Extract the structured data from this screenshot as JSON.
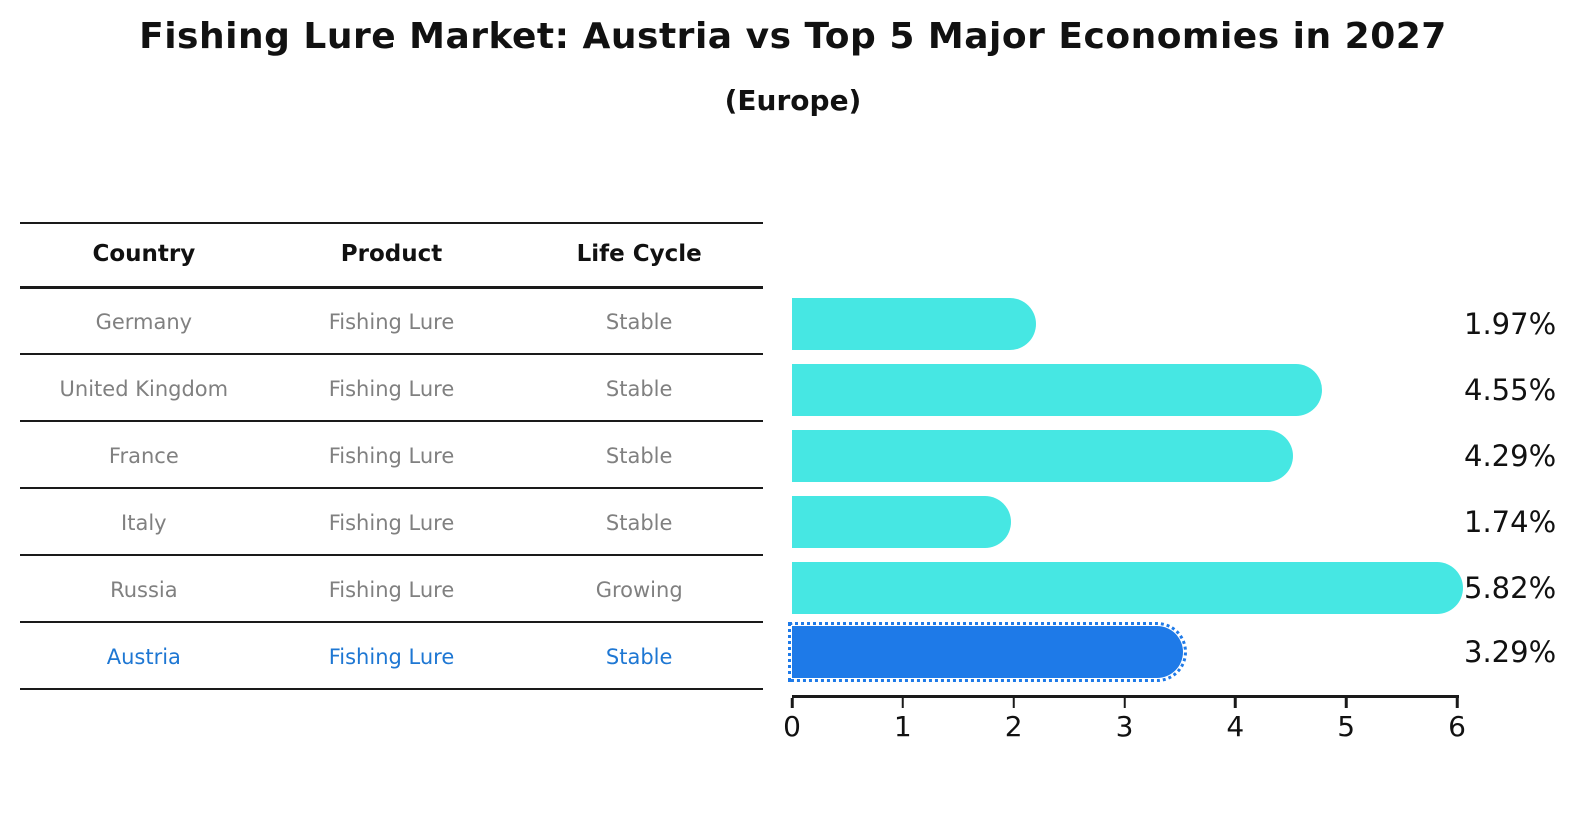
{
  "title": "Fishing Lure Market: Austria vs Top 5 Major Economies in 2027",
  "subtitle": "(Europe)",
  "table": {
    "headers": {
      "country": "Country",
      "product": "Product",
      "life_cycle": "Life Cycle"
    },
    "rows": [
      {
        "country": "Germany",
        "product": "Fishing Lure",
        "life_cycle": "Stable"
      },
      {
        "country": "United Kingdom",
        "product": "Fishing Lure",
        "life_cycle": "Stable"
      },
      {
        "country": "France",
        "product": "Fishing Lure",
        "life_cycle": "Stable"
      },
      {
        "country": "Italy",
        "product": "Fishing Lure",
        "life_cycle": "Stable"
      },
      {
        "country": "Russia",
        "product": "Fishing Lure",
        "life_cycle": "Growing"
      },
      {
        "country": "Austria",
        "product": "Fishing Lure",
        "life_cycle": "Stable"
      }
    ]
  },
  "chart_data": {
    "type": "bar",
    "orientation": "horizontal",
    "title": "Fishing Lure Market: Austria vs Top 5 Major Economies in 2027",
    "subtitle": "(Europe)",
    "categories": [
      "Germany",
      "United Kingdom",
      "France",
      "Italy",
      "Russia",
      "Austria"
    ],
    "values": [
      1.97,
      4.55,
      4.29,
      1.74,
      5.82,
      3.29
    ],
    "value_labels": [
      "1.97%",
      "4.55%",
      "4.29%",
      "1.74%",
      "5.82%",
      "3.29%"
    ],
    "xlabel": "",
    "ylabel": "",
    "xlim": [
      0,
      6
    ],
    "x_ticks": [
      "0",
      "1",
      "2",
      "3",
      "4",
      "5",
      "6"
    ],
    "grid": false,
    "legend": "none",
    "bar_color": "#46e7e3",
    "highlight_color": "#1e7ae8",
    "highlight_index": 5,
    "highlight_style": "dotted-outline"
  },
  "colors": {
    "background": "#ffffff",
    "title_text": "#111111",
    "table_line": "#1a1a1a",
    "table_header_text": "#111111",
    "table_row_text": "#808080",
    "highlight_text": "#1e77d3",
    "axis": "#1a1a1a",
    "value_label_text": "#111111"
  }
}
